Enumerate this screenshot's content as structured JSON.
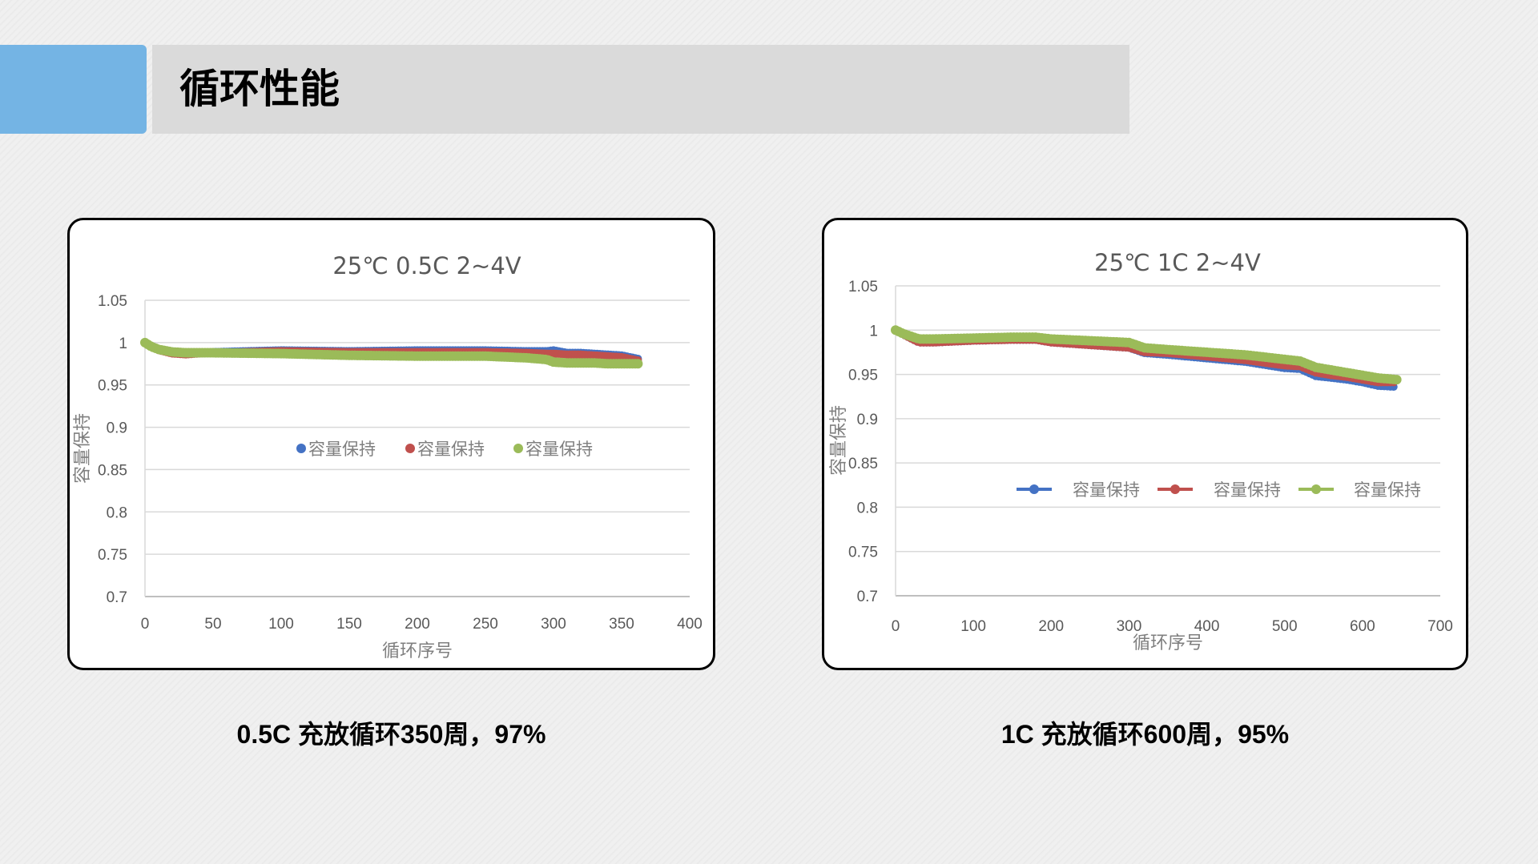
{
  "page": {
    "title": "循环性能",
    "accent_color": "#74b4e4",
    "title_bar_color": "#dadada"
  },
  "captions": [
    "0.5C 充放循环350周，97%",
    "1C 充放循环600周，95%"
  ],
  "chart_data": [
    {
      "type": "scatter",
      "title": "25℃ 0.5C 2~4V",
      "xlabel": "循环序号",
      "ylabel": "容量保持",
      "xlim": [
        0,
        400
      ],
      "ylim": [
        0.7,
        1.05
      ],
      "x_ticks": [
        0,
        50,
        100,
        150,
        200,
        250,
        300,
        350,
        400
      ],
      "y_ticks": [
        "1.05",
        "1",
        "0.95",
        "0.9",
        "0.85",
        "0.8",
        "0.75",
        "0.7"
      ],
      "grid": true,
      "legend_position": "center",
      "legend_style": "marker",
      "series": [
        {
          "name": "容量保持",
          "color": "#4472c4",
          "x": [
            0,
            5,
            10,
            20,
            30,
            50,
            100,
            150,
            200,
            250,
            280,
            295,
            300,
            310,
            320,
            330,
            340,
            350,
            362
          ],
          "y": [
            1.0,
            0.996,
            0.992,
            0.988,
            0.987,
            0.989,
            0.991,
            0.99,
            0.991,
            0.991,
            0.99,
            0.99,
            0.991,
            0.988,
            0.988,
            0.987,
            0.986,
            0.985,
            0.981
          ]
        },
        {
          "name": "容量保持",
          "color": "#c0504d",
          "x": [
            0,
            5,
            10,
            20,
            30,
            50,
            100,
            150,
            200,
            250,
            280,
            295,
            300,
            310,
            320,
            330,
            340,
            350,
            362
          ],
          "y": [
            1.0,
            0.995,
            0.991,
            0.987,
            0.986,
            0.988,
            0.99,
            0.989,
            0.989,
            0.989,
            0.988,
            0.987,
            0.987,
            0.986,
            0.986,
            0.985,
            0.984,
            0.983,
            0.979
          ]
        },
        {
          "name": "容量保持",
          "color": "#9bbb59",
          "x": [
            0,
            5,
            10,
            20,
            30,
            50,
            100,
            150,
            200,
            250,
            280,
            295,
            300,
            310,
            320,
            330,
            340,
            350,
            362
          ],
          "y": [
            1.0,
            0.995,
            0.992,
            0.989,
            0.988,
            0.988,
            0.987,
            0.985,
            0.984,
            0.984,
            0.982,
            0.98,
            0.977,
            0.976,
            0.976,
            0.976,
            0.975,
            0.975,
            0.975
          ]
        }
      ]
    },
    {
      "type": "line",
      "title": "25℃ 1C 2~4V",
      "xlabel": "循环序号",
      "ylabel": "容量保持",
      "xlim": [
        0,
        700
      ],
      "ylim": [
        0.7,
        1.05
      ],
      "x_ticks": [
        0,
        100,
        200,
        300,
        400,
        500,
        600,
        700
      ],
      "y_ticks": [
        "1.05",
        "1",
        "0.95",
        "0.9",
        "0.85",
        "0.8",
        "0.75",
        "0.7"
      ],
      "grid": true,
      "legend_position": "right",
      "legend_style": "line-marker",
      "series": [
        {
          "name": "容量保持",
          "color": "#4472c4",
          "x": [
            0,
            10,
            30,
            50,
            100,
            150,
            180,
            200,
            250,
            300,
            320,
            350,
            400,
            450,
            500,
            520,
            540,
            560,
            580,
            600,
            620,
            640
          ],
          "y": [
            1.0,
            0.995,
            0.986,
            0.986,
            0.988,
            0.989,
            0.989,
            0.986,
            0.983,
            0.98,
            0.974,
            0.972,
            0.968,
            0.964,
            0.957,
            0.956,
            0.948,
            0.946,
            0.944,
            0.941,
            0.937,
            0.936
          ]
        },
        {
          "name": "容量保持",
          "color": "#c0504d",
          "x": [
            0,
            10,
            30,
            50,
            100,
            150,
            180,
            200,
            250,
            300,
            320,
            350,
            400,
            450,
            500,
            520,
            540,
            560,
            580,
            600,
            620,
            640
          ],
          "y": [
            1.0,
            0.995,
            0.986,
            0.986,
            0.988,
            0.989,
            0.989,
            0.986,
            0.983,
            0.98,
            0.975,
            0.974,
            0.97,
            0.966,
            0.96,
            0.959,
            0.952,
            0.949,
            0.947,
            0.944,
            0.941,
            0.941
          ]
        },
        {
          "name": "容量保持",
          "color": "#9bbb59",
          "x": [
            0,
            10,
            30,
            50,
            100,
            150,
            180,
            200,
            250,
            300,
            320,
            350,
            400,
            450,
            500,
            520,
            540,
            560,
            580,
            600,
            620,
            645
          ],
          "y": [
            1.0,
            0.996,
            0.99,
            0.99,
            0.991,
            0.992,
            0.992,
            0.99,
            0.988,
            0.986,
            0.98,
            0.978,
            0.975,
            0.972,
            0.967,
            0.965,
            0.958,
            0.955,
            0.952,
            0.949,
            0.946,
            0.944
          ]
        }
      ]
    }
  ]
}
